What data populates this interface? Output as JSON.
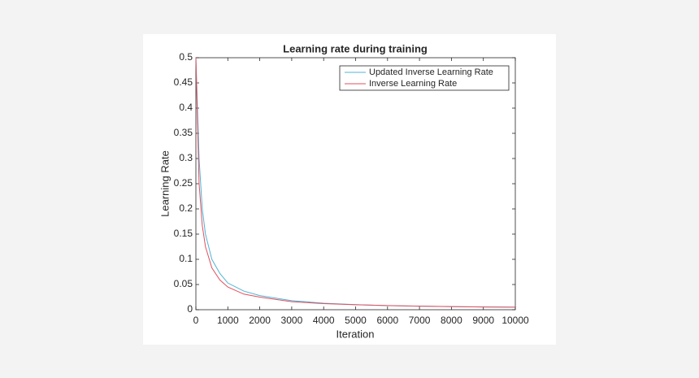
{
  "chart_data": {
    "type": "line",
    "title": "Learning rate during training",
    "x_label": "Iteration",
    "y_label": "Learning Rate",
    "x": [
      0,
      100,
      200,
      300,
      500,
      750,
      1000,
      1500,
      2000,
      3000,
      4000,
      5000,
      6000,
      7000,
      8000,
      9000,
      10000
    ],
    "series": [
      {
        "name": "Updated Inverse Learning Rate",
        "color": "#4fb3d6",
        "values": [
          0.5,
          0.3,
          0.2,
          0.15,
          0.1,
          0.072,
          0.053,
          0.037,
          0.028,
          0.018,
          0.013,
          0.01,
          0.008,
          0.007,
          0.006,
          0.0055,
          0.005
        ]
      },
      {
        "name": "Inverse Learning Rate",
        "color": "#e0505e",
        "values": [
          0.5,
          0.25,
          0.167,
          0.125,
          0.083,
          0.059,
          0.045,
          0.031,
          0.025,
          0.016,
          0.012,
          0.0098,
          0.0082,
          0.007,
          0.0062,
          0.0055,
          0.005
        ]
      }
    ],
    "xlim": [
      0,
      10000
    ],
    "xticks": [
      0,
      1000,
      2000,
      3000,
      4000,
      5000,
      6000,
      7000,
      8000,
      9000,
      10000
    ],
    "ylim": [
      0,
      0.5
    ],
    "yticks": [
      0,
      0.05,
      0.1,
      0.15,
      0.2,
      0.25,
      0.3,
      0.35,
      0.4,
      0.45,
      0.5
    ],
    "grid": false,
    "legend": "upper-right"
  }
}
